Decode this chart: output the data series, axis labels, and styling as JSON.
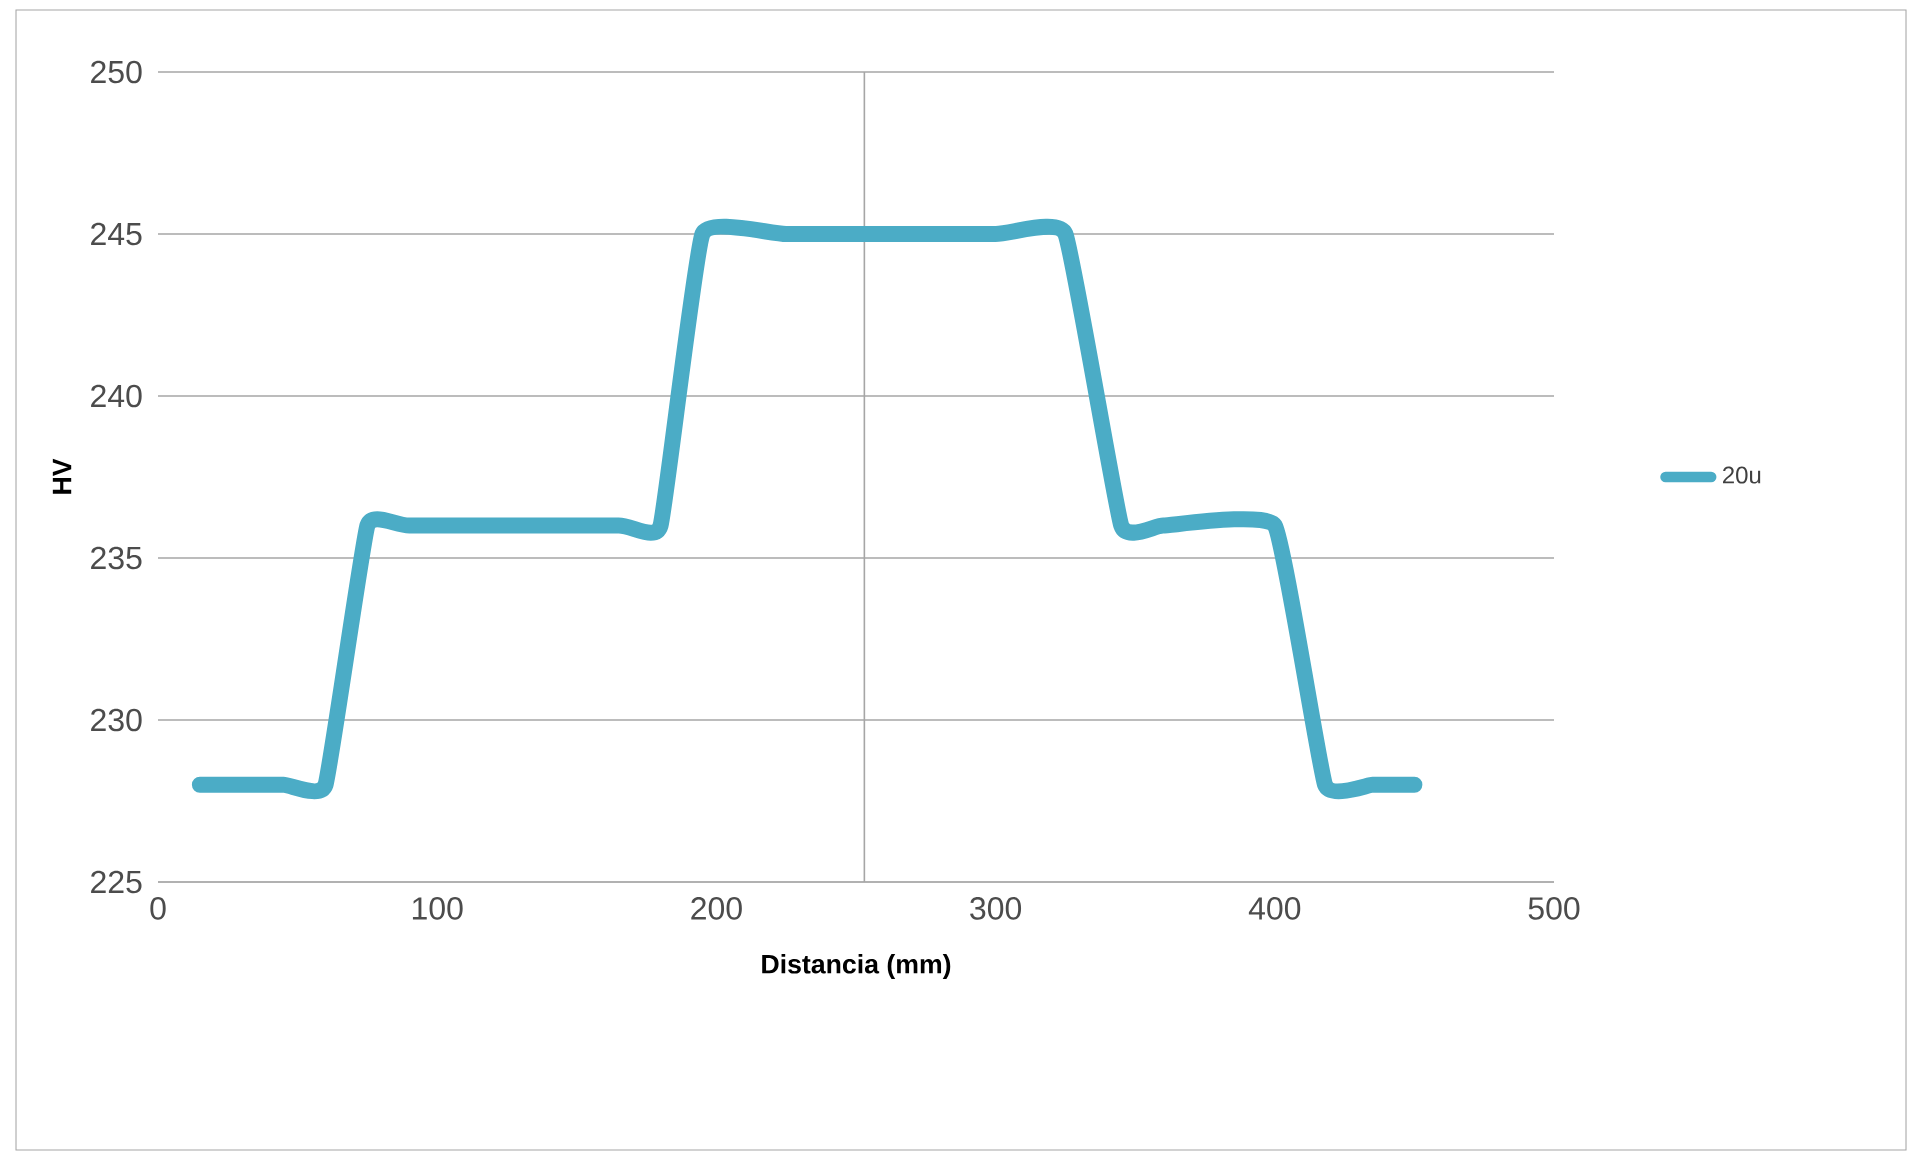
{
  "chart_data": {
    "type": "line",
    "xlabel": "Distancia (mm)",
    "ylabel": "HV",
    "series": [
      {
        "name": "20u",
        "color": "#4bacc6",
        "x": [
          15,
          45,
          60,
          75,
          90,
          165,
          180,
          195,
          225,
          300,
          325,
          345,
          360,
          400,
          418,
          435,
          450
        ],
        "values": [
          228,
          228,
          228,
          236,
          236,
          236,
          236,
          245,
          245,
          245,
          245,
          236,
          236,
          236,
          228,
          228,
          228
        ]
      }
    ],
    "xlim": [
      0,
      500
    ],
    "xticks": [
      0,
      100,
      200,
      300,
      400,
      500
    ],
    "ylim": [
      225,
      250
    ],
    "yticks": [
      225,
      230,
      235,
      240,
      245,
      250
    ],
    "grid": "y",
    "legend": "right",
    "marker": "none",
    "line_style": "solid"
  }
}
